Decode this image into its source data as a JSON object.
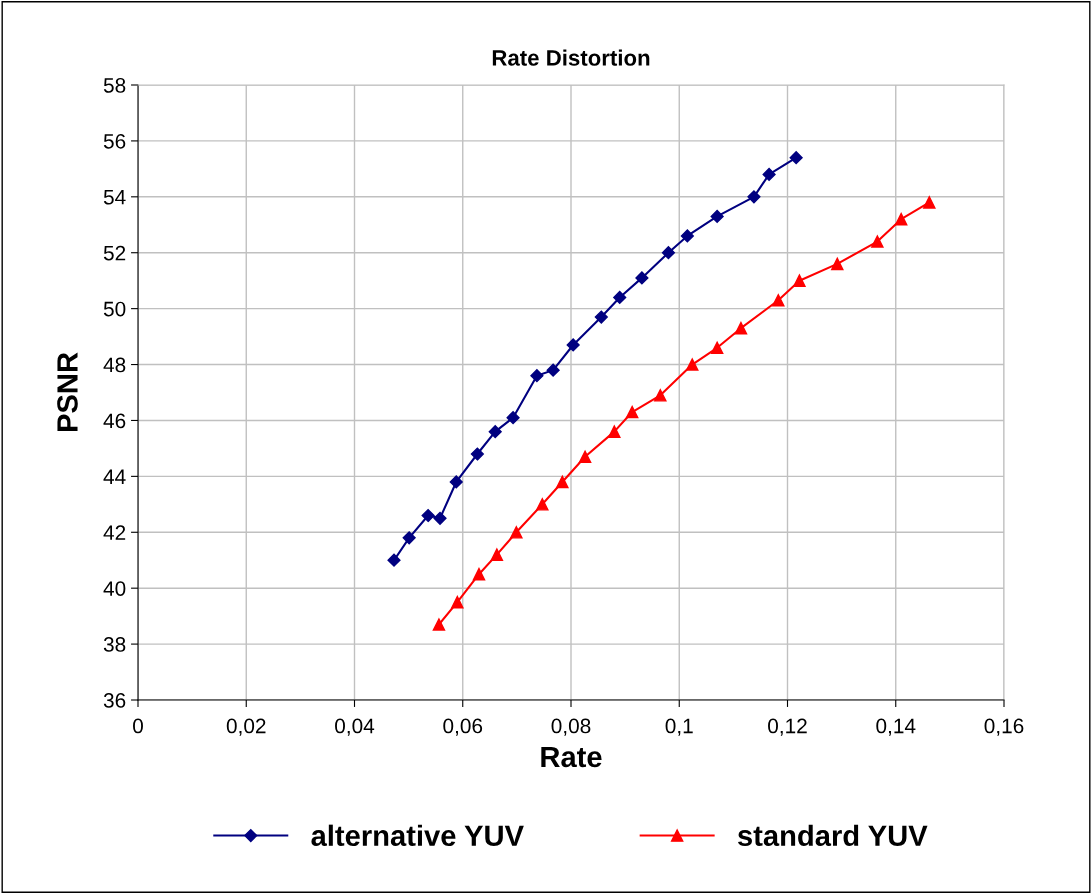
{
  "chart_data": {
    "type": "line",
    "title": "Rate Distortion",
    "xlabel": "Rate",
    "ylabel": "PSNR",
    "xlim": [
      0,
      0.16
    ],
    "xticks": [
      0,
      {
        "value": 0.02,
        "label": "0,02"
      },
      {
        "value": 0.04,
        "label": "0,04"
      },
      {
        "value": 0.06,
        "label": "0,06"
      },
      {
        "value": 0.08,
        "label": "0,08"
      },
      {
        "value": 0.1,
        "label": "0,1"
      },
      {
        "value": 0.12,
        "label": "0,12"
      },
      {
        "value": 0.14,
        "label": "0,14"
      },
      {
        "value": 0.16,
        "label": "0,16"
      }
    ],
    "ylim": [
      36,
      58
    ],
    "yticks": [
      36,
      38,
      40,
      42,
      44,
      46,
      48,
      50,
      52,
      54,
      56,
      58
    ],
    "grid": true,
    "legend": "bottom",
    "line_style": "solid",
    "series": [
      {
        "name": "alternative YUV",
        "color": "#000080",
        "marker": "diamond",
        "x": [
          0.0473,
          0.0501,
          0.0536,
          0.0558,
          0.0588,
          0.0627,
          0.066,
          0.0693,
          0.0737,
          0.0767,
          0.0804,
          0.0856,
          0.089,
          0.0931,
          0.098,
          0.1015,
          0.107,
          0.1138,
          0.1166,
          0.1216
        ],
        "values": [
          41.0,
          41.8,
          42.6,
          42.5,
          43.8,
          44.8,
          45.6,
          46.1,
          47.6,
          47.8,
          48.7,
          49.7,
          50.4,
          51.1,
          52.0,
          52.6,
          53.3,
          54.0,
          54.8,
          55.4
        ]
      },
      {
        "name": "standard YUV",
        "color": "#ff0000",
        "marker": "triangle",
        "x": [
          0.0556,
          0.059,
          0.063,
          0.0663,
          0.0699,
          0.0747,
          0.0784,
          0.0826,
          0.088,
          0.0913,
          0.0965,
          0.1024,
          0.107,
          0.1114,
          0.1183,
          0.1222,
          0.1292,
          0.1366,
          0.141,
          0.1462
        ],
        "values": [
          38.7,
          39.5,
          40.5,
          41.2,
          42.0,
          43.0,
          43.8,
          44.7,
          45.6,
          46.3,
          46.9,
          48.0,
          48.6,
          49.3,
          50.3,
          51.0,
          51.6,
          52.4,
          53.2,
          53.8
        ]
      }
    ]
  }
}
